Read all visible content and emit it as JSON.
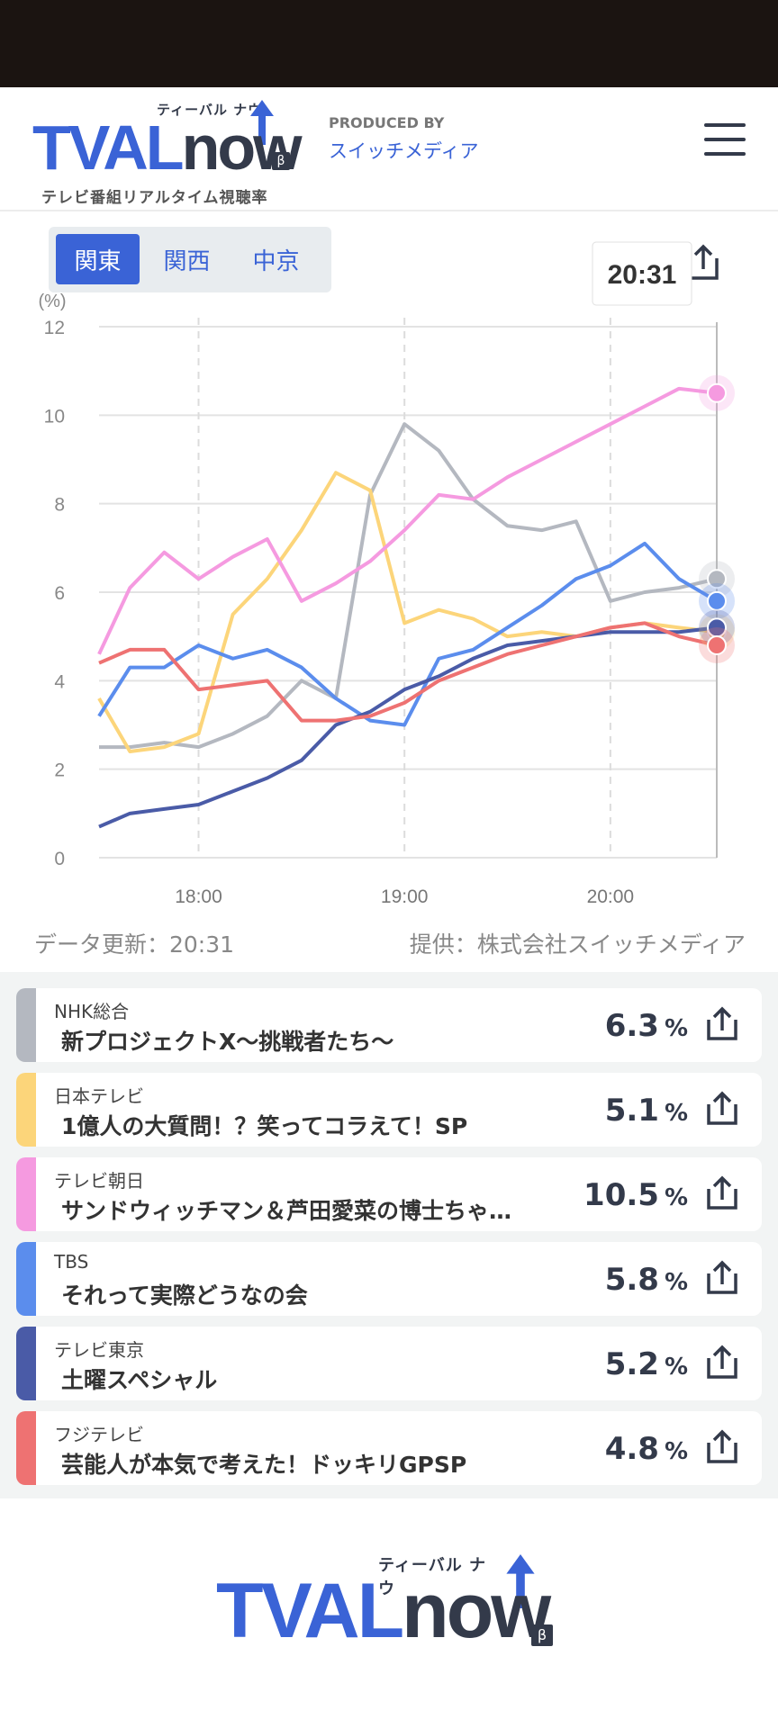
{
  "header": {
    "logo_main": "TVALnow",
    "logo_kana": "ティーバル ナウ",
    "logo_beta": "β",
    "logo_sub": "テレビ番組リアルタイム視聴率",
    "produced_by": "PRODUCED BY",
    "producer": "スイッチメディア"
  },
  "regions": [
    {
      "label": "関東",
      "active": true
    },
    {
      "label": "関西",
      "active": false
    },
    {
      "label": "中京",
      "active": false
    }
  ],
  "chart_data": {
    "type": "line",
    "ylabel": "(%)",
    "ylim": [
      0,
      12
    ],
    "yticks": [
      "0",
      "2",
      "4",
      "6",
      "8",
      "10",
      "12"
    ],
    "xticks": [
      "18:00",
      "19:00",
      "20:00"
    ],
    "cursor_time": "20:31",
    "x": [
      "17:31",
      "17:40",
      "17:50",
      "18:00",
      "18:10",
      "18:20",
      "18:30",
      "18:40",
      "18:50",
      "19:00",
      "19:10",
      "19:20",
      "19:30",
      "19:40",
      "19:50",
      "20:00",
      "20:10",
      "20:20",
      "20:31"
    ],
    "series": [
      {
        "name": "NHK総合",
        "color": "#b4b8c0",
        "values": [
          2.5,
          2.5,
          2.6,
          2.5,
          2.8,
          3.2,
          4.0,
          3.6,
          8.2,
          9.8,
          9.2,
          8.1,
          7.5,
          7.4,
          7.6,
          5.8,
          6.0,
          6.1,
          6.3
        ]
      },
      {
        "name": "日本テレビ",
        "color": "#fcd57a",
        "values": [
          3.6,
          2.4,
          2.5,
          2.8,
          5.5,
          6.3,
          7.4,
          8.7,
          8.3,
          5.3,
          5.6,
          5.4,
          5.0,
          5.1,
          5.0,
          5.2,
          5.3,
          5.2,
          5.1
        ]
      },
      {
        "name": "テレビ朝日",
        "color": "#f59ae0",
        "values": [
          4.6,
          6.1,
          6.9,
          6.3,
          6.8,
          7.2,
          5.8,
          6.2,
          6.7,
          7.4,
          8.2,
          8.1,
          8.6,
          9.0,
          9.4,
          9.8,
          10.2,
          10.6,
          10.5
        ]
      },
      {
        "name": "TBS",
        "color": "#5b8ded",
        "values": [
          3.2,
          4.3,
          4.3,
          4.8,
          4.5,
          4.7,
          4.3,
          3.6,
          3.1,
          3.0,
          4.5,
          4.7,
          5.2,
          5.7,
          6.3,
          6.6,
          7.1,
          6.3,
          5.8
        ]
      },
      {
        "name": "テレビ東京",
        "color": "#4a5ba7",
        "values": [
          0.7,
          1.0,
          1.1,
          1.2,
          1.5,
          1.8,
          2.2,
          3.0,
          3.3,
          3.8,
          4.1,
          4.5,
          4.8,
          4.9,
          5.0,
          5.1,
          5.1,
          5.1,
          5.2
        ]
      },
      {
        "name": "フジテレビ",
        "color": "#ee7272",
        "values": [
          4.4,
          4.7,
          4.7,
          3.8,
          3.9,
          4.0,
          3.1,
          3.1,
          3.2,
          3.5,
          4.0,
          4.3,
          4.6,
          4.8,
          5.0,
          5.2,
          5.3,
          5.0,
          4.8
        ]
      }
    ]
  },
  "footer_meta": {
    "updated": "データ更新：20:31",
    "provider": "提供：株式会社スイッチメディア"
  },
  "programs": [
    {
      "channel": "NHK総合",
      "title": "新プロジェクトX〜挑戦者たち〜",
      "rate": "6.3",
      "unit": "%",
      "color": "#b4b8c0"
    },
    {
      "channel": "日本テレビ",
      "title": "1億人の大質問！？笑ってコラえて！SP",
      "rate": "5.1",
      "unit": "%",
      "color": "#fcd57a"
    },
    {
      "channel": "テレビ朝日",
      "title": "サンドウィッチマン＆芦田愛菜の博士ちゃ…",
      "rate": "10.5",
      "unit": "%",
      "color": "#f59ae0"
    },
    {
      "channel": "TBS",
      "title": "それって実際どうなの会",
      "rate": "5.8",
      "unit": "%",
      "color": "#5b8ded"
    },
    {
      "channel": "テレビ東京",
      "title": "土曜スペシャル",
      "rate": "5.2",
      "unit": "%",
      "color": "#4a5ba7"
    },
    {
      "channel": "フジテレビ",
      "title": "芸能人が本気で考えた！ドッキリGPSP",
      "rate": "4.8",
      "unit": "%",
      "color": "#ee7272"
    }
  ],
  "icons": {
    "info": "info-icon",
    "share": "share-icon",
    "menu": "hamburger-menu-icon"
  }
}
